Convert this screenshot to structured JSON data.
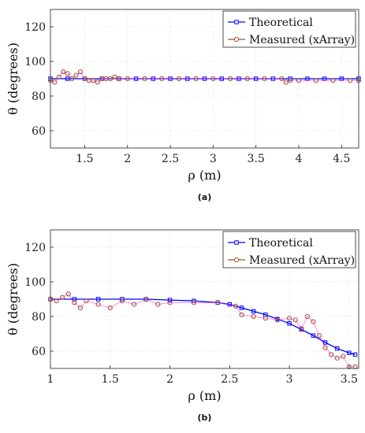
{
  "chart_data": [
    {
      "type": "line",
      "panel_label": "(a)",
      "xlabel": "ρ (m)",
      "ylabel": "θ (degrees)",
      "xlim": [
        1.1,
        4.7
      ],
      "ylim": [
        50,
        130
      ],
      "xticks": [
        1.5,
        2,
        2.5,
        3,
        3.5,
        4,
        4.5
      ],
      "xtick_labels": [
        "1.5",
        "2",
        "2.5",
        "3",
        "3.5",
        "4",
        "4.5"
      ],
      "yticks": [
        60,
        80,
        100,
        120
      ],
      "ytick_labels": [
        "60",
        "80",
        "100",
        "120"
      ],
      "grid": true,
      "legend_position": "top-right",
      "series": [
        {
          "name": "Theoretical",
          "color": "#0000ff",
          "marker": "square",
          "x": [
            1.1,
            1.3,
            1.5,
            1.7,
            1.9,
            2.1,
            2.3,
            2.5,
            2.7,
            2.9,
            3.1,
            3.3,
            3.5,
            3.7,
            3.9,
            4.1,
            4.3,
            4.5,
            4.7
          ],
          "y": [
            90,
            90,
            90,
            90,
            90,
            90,
            90,
            90,
            90,
            90,
            90,
            90,
            90,
            90,
            90,
            90,
            90,
            90,
            90
          ]
        },
        {
          "name": "Measured (xArray)",
          "color": "#a0522d",
          "marker": "circle",
          "x": [
            1.1,
            1.15,
            1.2,
            1.25,
            1.3,
            1.35,
            1.4,
            1.45,
            1.5,
            1.55,
            1.6,
            1.65,
            1.7,
            1.75,
            1.8,
            1.85,
            1.9,
            2.0,
            2.2,
            2.4,
            2.6,
            2.8,
            3.0,
            3.2,
            3.4,
            3.6,
            3.8,
            3.85,
            3.9,
            4.0,
            4.2,
            4.4,
            4.6,
            4.7
          ],
          "y": [
            89,
            88,
            91,
            94,
            93,
            90,
            92,
            94,
            90,
            89,
            89,
            88,
            90,
            90,
            90,
            91,
            90,
            90,
            90,
            90,
            90,
            90,
            90,
            90,
            90,
            90,
            90,
            88,
            89,
            89,
            89,
            89,
            89,
            89
          ]
        }
      ]
    },
    {
      "type": "line",
      "panel_label": "(b)",
      "xlabel": "ρ (m)",
      "ylabel": "θ (degrees)",
      "xlim": [
        1,
        3.58
      ],
      "ylim": [
        50,
        130
      ],
      "xticks": [
        1,
        1.5,
        2,
        2.5,
        3,
        3.5
      ],
      "xtick_labels": [
        "1",
        "1.5",
        "2",
        "2.5",
        "3",
        "3.5"
      ],
      "yticks": [
        60,
        80,
        100,
        120
      ],
      "ytick_labels": [
        "60",
        "80",
        "100",
        "120"
      ],
      "grid": true,
      "legend_position": "top-right",
      "series": [
        {
          "name": "Theoretical",
          "color": "#0000ff",
          "marker": "square",
          "x": [
            1.0,
            1.2,
            1.4,
            1.6,
            1.8,
            2.0,
            2.2,
            2.4,
            2.5,
            2.6,
            2.7,
            2.8,
            2.9,
            3.0,
            3.1,
            3.2,
            3.3,
            3.4,
            3.5,
            3.55
          ],
          "y": [
            90,
            90,
            90,
            90,
            90,
            89.5,
            89,
            88,
            87,
            85,
            83,
            81,
            78.5,
            76,
            72.5,
            69,
            65,
            61.5,
            59,
            58
          ]
        },
        {
          "name": "Measured (xArray)",
          "color": "#a0522d",
          "marker": "circle",
          "x": [
            1.0,
            1.05,
            1.1,
            1.15,
            1.2,
            1.25,
            1.3,
            1.4,
            1.5,
            1.6,
            1.7,
            1.8,
            1.9,
            2.0,
            2.2,
            2.4,
            2.55,
            2.6,
            2.7,
            2.8,
            2.9,
            3.0,
            3.05,
            3.1,
            3.15,
            3.2,
            3.25,
            3.3,
            3.35,
            3.4,
            3.45,
            3.5,
            3.55
          ],
          "y": [
            90,
            89,
            91,
            93,
            88,
            85,
            89,
            87,
            85,
            89,
            87,
            90,
            87,
            88,
            88,
            88,
            86,
            81,
            80,
            79,
            78,
            79,
            78,
            73,
            80,
            77,
            69,
            62,
            58,
            56,
            57,
            51,
            51
          ]
        }
      ]
    }
  ]
}
